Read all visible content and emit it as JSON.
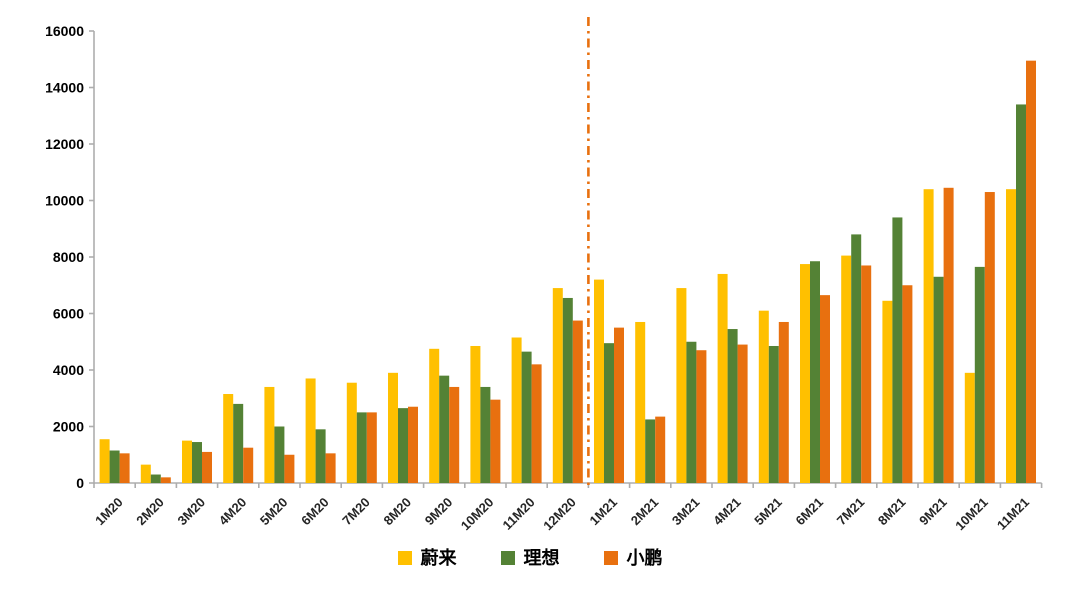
{
  "chart_data": {
    "type": "bar",
    "title": "",
    "xlabel": "",
    "ylabel": "",
    "categories": [
      "1M20",
      "2M20",
      "3M20",
      "4M20",
      "5M20",
      "6M20",
      "7M20",
      "8M20",
      "9M20",
      "10M20",
      "11M20",
      "12M20",
      "1M21",
      "2M21",
      "3M21",
      "4M21",
      "5M21",
      "6M21",
      "7M21",
      "8M21",
      "9M21",
      "10M21",
      "11M21"
    ],
    "series": [
      {
        "name": "蔚来",
        "color": "#FFC000",
        "values": [
          1550,
          650,
          1500,
          3150,
          3400,
          3700,
          3550,
          3900,
          4750,
          4850,
          5150,
          6900,
          7200,
          5700,
          6900,
          7400,
          6100,
          7750,
          8050,
          6450,
          10400,
          3900,
          10400
        ]
      },
      {
        "name": "理想",
        "color": "#548235",
        "values": [
          1150,
          300,
          1450,
          2800,
          2000,
          1900,
          2500,
          2650,
          3800,
          3400,
          4650,
          6550,
          4950,
          2250,
          5000,
          5450,
          4850,
          7850,
          8800,
          9400,
          7300,
          7650,
          13400
        ]
      },
      {
        "name": "小鹏",
        "color": "#E8700F",
        "values": [
          1050,
          200,
          1100,
          1250,
          1000,
          1050,
          2500,
          2700,
          3400,
          2950,
          4200,
          5750,
          5500,
          2350,
          4700,
          4900,
          5700,
          6650,
          7700,
          7000,
          10450,
          10300,
          14950
        ]
      }
    ],
    "ylim": [
      0,
      16000
    ],
    "ytick_step": 2000,
    "y_tick_labels": [
      "0",
      "2000",
      "4000",
      "6000",
      "8000",
      "10000",
      "12000",
      "14000",
      "16000"
    ],
    "grid": false,
    "legend_position": "bottom",
    "divider": {
      "after_category": "12M20",
      "style": "dash-dot",
      "color": "#E8700F"
    },
    "axis_color": "#ADADAD"
  }
}
